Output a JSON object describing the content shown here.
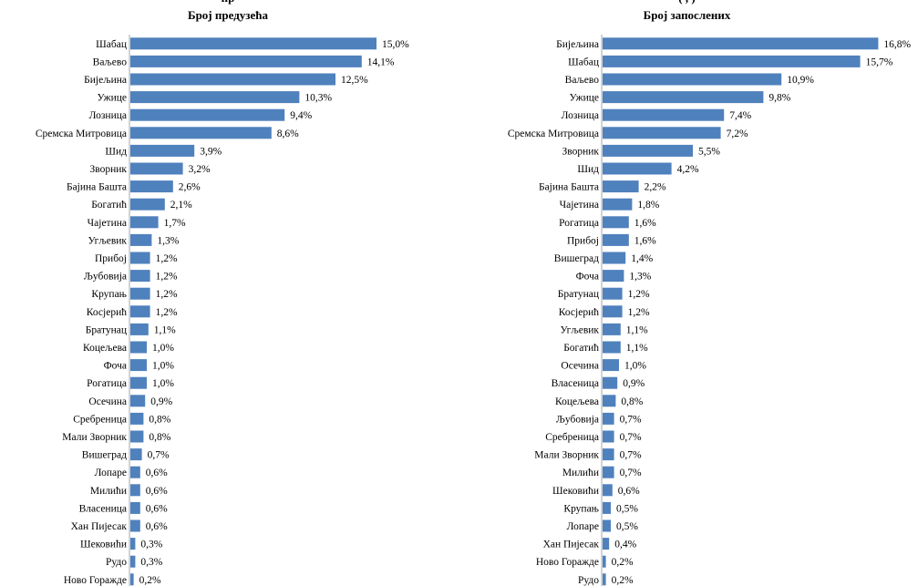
{
  "chart_data": [
    {
      "type": "bar",
      "orientation": "horizontal",
      "title": "Број предузећа",
      "cut_title": "пр",
      "bar_color": "#4f81bd",
      "categories": [
        "Шабац",
        "Ваљево",
        "Бијељина",
        "Ужице",
        "Лозница",
        "Сремска Митровица",
        "Шид",
        "Зворник",
        "Бајина Башта",
        "Богатић",
        "Чајетина",
        "Угљевик",
        "Прибој",
        "Љубовија",
        "Крупањ",
        "Косјерић",
        "Братунац",
        "Коцељева",
        "Фоча",
        "Рогатица",
        "Осечина",
        "Сребреница",
        "Мали Зворник",
        "Вишеград",
        "Лопаре",
        "Милићи",
        "Власеница",
        "Хан Пијесак",
        "Шековићи",
        "Рудо",
        "Ново Горажде"
      ],
      "values": [
        15.0,
        14.1,
        12.5,
        10.3,
        9.4,
        8.6,
        3.9,
        3.2,
        2.6,
        2.1,
        1.7,
        1.3,
        1.2,
        1.2,
        1.2,
        1.2,
        1.1,
        1.0,
        1.0,
        1.0,
        0.9,
        0.8,
        0.8,
        0.7,
        0.6,
        0.6,
        0.6,
        0.6,
        0.3,
        0.3,
        0.2
      ],
      "labels": [
        "15,0%",
        "14,1%",
        "12,5%",
        "10,3%",
        "9,4%",
        "8,6%",
        "3,9%",
        "3,2%",
        "2,6%",
        "2,1%",
        "1,7%",
        "1,3%",
        "1,2%",
        "1,2%",
        "1,2%",
        "1,2%",
        "1,1%",
        "1,0%",
        "1,0%",
        "1,0%",
        "0,9%",
        "0,8%",
        "0,8%",
        "0,7%",
        "0,6%",
        "0,6%",
        "0,6%",
        "0,6%",
        "0,3%",
        "0,3%",
        "0,2%"
      ],
      "unit": "%"
    },
    {
      "type": "bar",
      "orientation": "horizontal",
      "title": "Број запослених",
      "cut_title": "(               ,                                              )",
      "bar_color": "#4f81bd",
      "categories": [
        "Бијељина",
        "Шабац",
        "Ваљево",
        "Ужице",
        "Лозница",
        "Сремска Митровица",
        "Зворник",
        "Шид",
        "Бајина Башта",
        "Чајетина",
        "Рогатица",
        "Прибој",
        "Вишеград",
        "Фоча",
        "Братунац",
        "Косјерић",
        "Угљевик",
        "Богатић",
        "Осечина",
        "Власеница",
        "Коцељева",
        "Љубовија",
        "Сребреница",
        "Мали Зворник",
        "Милићи",
        "Шековићи",
        "Крупањ",
        "Лопаре",
        "Хан Пијесак",
        "Ново Горажде",
        "Рудо"
      ],
      "values": [
        16.8,
        15.7,
        10.9,
        9.8,
        7.4,
        7.2,
        5.5,
        4.2,
        2.2,
        1.8,
        1.6,
        1.6,
        1.4,
        1.3,
        1.2,
        1.2,
        1.1,
        1.1,
        1.0,
        0.9,
        0.8,
        0.7,
        0.7,
        0.7,
        0.7,
        0.6,
        0.5,
        0.5,
        0.4,
        0.2,
        0.2
      ],
      "labels": [
        "16,8%",
        "15,7%",
        "10,9%",
        "9,8%",
        "7,4%",
        "7,2%",
        "5,5%",
        "4,2%",
        "2,2%",
        "1,8%",
        "1,6%",
        "1,6%",
        "1,4%",
        "1,3%",
        "1,2%",
        "1,2%",
        "1,1%",
        "1,1%",
        "1,0%",
        "0,9%",
        "0,8%",
        "0,7%",
        "0,7%",
        "0,7%",
        "0,7%",
        "0,6%",
        "0,5%",
        "0,5%",
        "0,4%",
        "0,2%",
        "0,2%"
      ],
      "unit": "%"
    }
  ]
}
